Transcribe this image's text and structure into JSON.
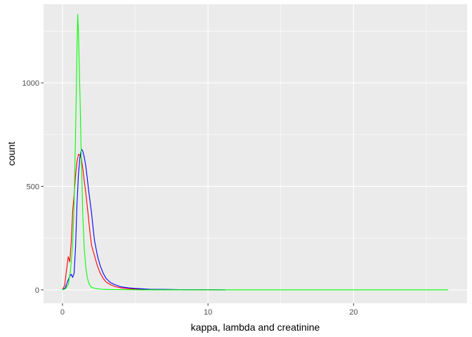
{
  "chart_data": {
    "type": "line",
    "subtype": "frequency-polygon",
    "title": "",
    "xlabel": "kappa, lambda and creatinine",
    "ylabel": "count",
    "xlim": [
      -1.3,
      27.8
    ],
    "ylim": [
      -65,
      1380
    ],
    "xticks": [
      0,
      10,
      20
    ],
    "yticks": [
      0,
      500,
      1000
    ],
    "x_tick_labels": [
      "0",
      "10",
      "20"
    ],
    "y_tick_labels": [
      "0",
      "500",
      "1000"
    ],
    "grid": true,
    "legend": "none",
    "background": "#ebebeb",
    "grid_color": "#ffffff",
    "series": [
      {
        "color": "#ff0000",
        "x": [
          0,
          0.15,
          0.3,
          0.4,
          0.5,
          0.6,
          0.7,
          0.8,
          0.9,
          1.0,
          1.1,
          1.2,
          1.3,
          1.4,
          1.5,
          1.6,
          1.7,
          1.8,
          1.9,
          2.0,
          2.2,
          2.4,
          2.6,
          2.8,
          3.0,
          3.3,
          3.6,
          4.0,
          4.5,
          5.0,
          5.5,
          6.0,
          7.0,
          8.0,
          10.0,
          11.0
        ],
        "y": [
          0,
          20,
          110,
          160,
          135,
          230,
          375,
          460,
          555,
          620,
          655,
          650,
          635,
          585,
          525,
          470,
          405,
          340,
          270,
          215,
          165,
          115,
          80,
          55,
          38,
          25,
          16,
          10,
          6,
          4,
          3,
          2,
          1,
          1,
          0,
          0
        ]
      },
      {
        "color": "#0000ff",
        "x": [
          0,
          0.2,
          0.35,
          0.5,
          0.6,
          0.7,
          0.8,
          0.9,
          1.0,
          1.1,
          1.2,
          1.3,
          1.4,
          1.5,
          1.6,
          1.7,
          1.8,
          1.9,
          2.0,
          2.1,
          2.2,
          2.4,
          2.6,
          2.8,
          3.0,
          3.3,
          3.6,
          4.0,
          4.5,
          5.0,
          5.5,
          6.0,
          7.0,
          8.0,
          9.0,
          10.0,
          11.2
        ],
        "y": [
          0,
          10,
          40,
          65,
          75,
          60,
          80,
          210,
          420,
          560,
          640,
          680,
          670,
          640,
          600,
          540,
          480,
          425,
          370,
          300,
          240,
          165,
          115,
          80,
          55,
          35,
          25,
          15,
          10,
          7,
          5,
          3,
          2,
          1,
          1,
          1,
          0
        ]
      },
      {
        "color": "#00ff00",
        "x": [
          0,
          0.2,
          0.4,
          0.55,
          0.7,
          0.8,
          0.9,
          1.0,
          1.05,
          1.1,
          1.2,
          1.3,
          1.4,
          1.5,
          1.6,
          1.7,
          1.8,
          1.9,
          2.0,
          2.2,
          2.4,
          2.7,
          3.0,
          3.5,
          4.0,
          5.0,
          6.0,
          8.0,
          10.0,
          15.0,
          20.0,
          26.5
        ],
        "y": [
          0,
          5,
          25,
          90,
          220,
          420,
          760,
          1180,
          1330,
          1240,
          950,
          620,
          360,
          200,
          110,
          60,
          35,
          20,
          12,
          8,
          5,
          3,
          2,
          1,
          1,
          0,
          0,
          0,
          0,
          0,
          0,
          0
        ]
      }
    ]
  }
}
